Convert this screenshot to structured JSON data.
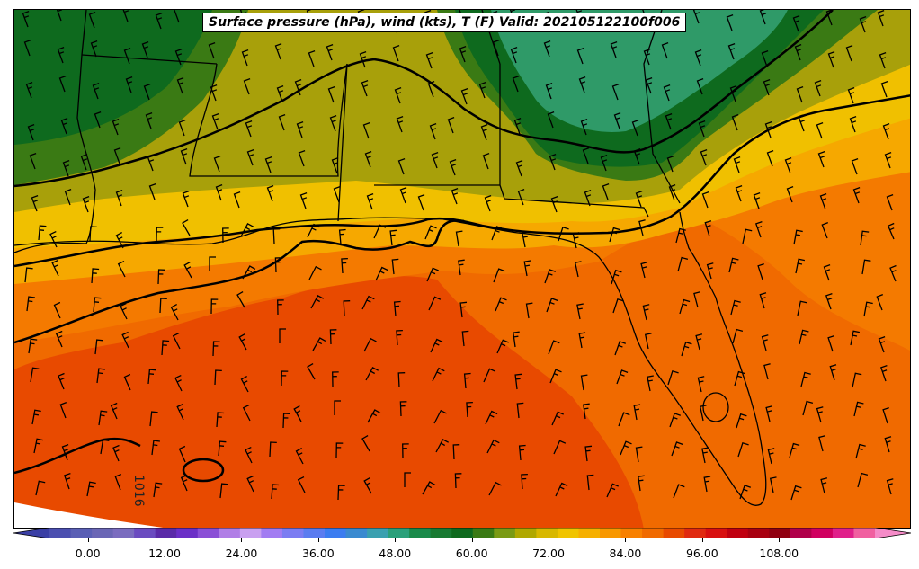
{
  "title": "Surface pressure (hPa), wind (kts), T (F) Valid: 202105122100f006",
  "isobar_label": "1016",
  "colorbar": {
    "ticks": [
      "0.00",
      "12.00",
      "24.00",
      "36.00",
      "48.00",
      "60.00",
      "72.00",
      "84.00",
      "96.00",
      "108.00"
    ],
    "tick_values": [
      0,
      12,
      24,
      36,
      48,
      60,
      72,
      84,
      96,
      108
    ],
    "min": -6,
    "max": 123,
    "colors": [
      "#3a3fa5",
      "#4b4fb0",
      "#5a5fb5",
      "#6a66b5",
      "#7a6cbf",
      "#6a4bc0",
      "#5a2aa8",
      "#6b2fc7",
      "#8a4fd6",
      "#b07ee6",
      "#c9a0f0",
      "#a27cf2",
      "#7b7cf2",
      "#5b7cf0",
      "#3b7cf0",
      "#3a8ad0",
      "#3aa0b0",
      "#2aa07a",
      "#1a8a4a",
      "#187a32",
      "#0e6a1e",
      "#3a7a14",
      "#7a9a14",
      "#b0a800",
      "#d8b800",
      "#f0c400",
      "#f6b000",
      "#f89800",
      "#f88000",
      "#f06a00",
      "#e84a00",
      "#e02a10",
      "#d81010",
      "#c00010",
      "#a80010",
      "#900010",
      "#b0004a",
      "#d00060",
      "#e0208a",
      "#f060a0",
      "#f58bc8"
    ]
  },
  "colors": {
    "cool_green": "#2f9a68",
    "green_dark": "#0e6a1e",
    "green_mid": "#3a7a14",
    "olive": "#a8a00a",
    "yellow": "#f0c000",
    "orange_light": "#f6a800",
    "orange": "#f47a00",
    "orange_deep": "#f06a00",
    "red_orange": "#e84a00"
  }
}
